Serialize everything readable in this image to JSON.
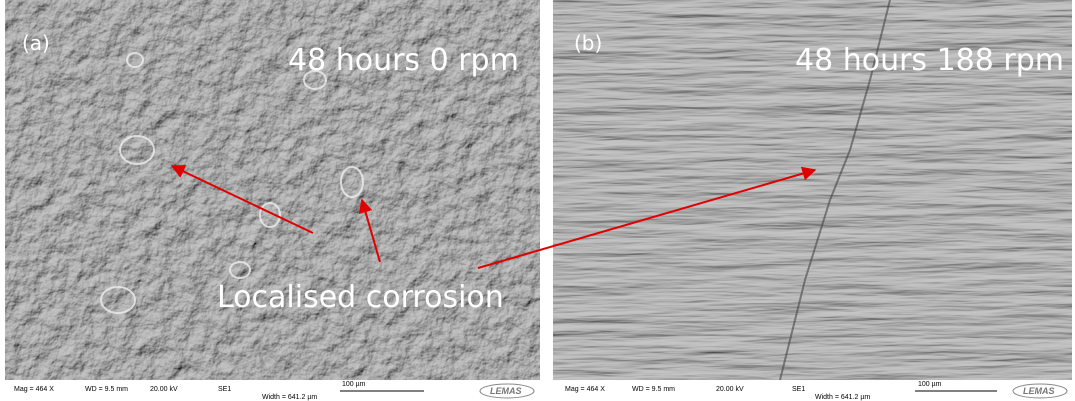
{
  "panels": [
    {
      "label": "(a)",
      "caption": "48 hours 0 rpm",
      "info": {
        "mag": "Mag =  464 X",
        "wd": "WD = 9.5 mm",
        "kv": "20.00 kV",
        "detector": "SE1",
        "width": "Width = 641.2 µm",
        "scale": "100 µm"
      },
      "logo": "LEMAS"
    },
    {
      "label": "(b)",
      "caption": "48 hours 188 rpm",
      "info": {
        "mag": "Mag =  464 X",
        "wd": "WD = 9.5 mm",
        "kv": "20.00 kV",
        "detector": "SE1",
        "width": "Width = 641.2 µm",
        "scale": "100 µm"
      },
      "logo": "LEMAS"
    }
  ],
  "annotation": "Localised corrosion"
}
